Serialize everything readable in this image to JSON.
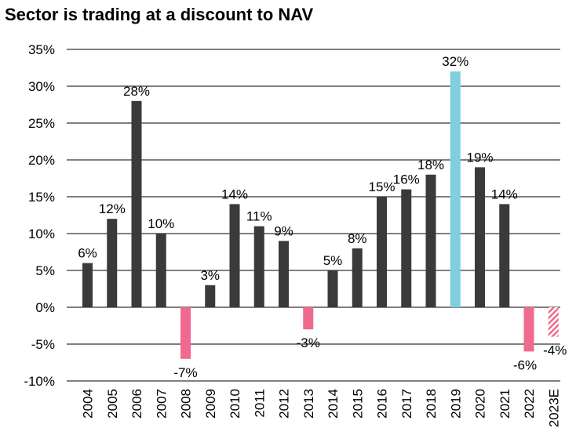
{
  "chart_data": {
    "type": "bar",
    "title": "Sector is trading at a discount to NAV",
    "xlabel": "",
    "ylabel": "",
    "ylim": [
      -10,
      35
    ],
    "yticks": [
      35,
      30,
      25,
      20,
      15,
      10,
      5,
      0,
      -5,
      -10
    ],
    "ytick_labels": [
      "35%",
      "30%",
      "25%",
      "20%",
      "15%",
      "10%",
      "5%",
      "0%",
      "-5%",
      "-10%"
    ],
    "grid": true,
    "legend": "none",
    "categories": [
      "2004",
      "2005",
      "2006",
      "2007",
      "2008",
      "2009",
      "2010",
      "2011",
      "2012",
      "2013",
      "2014",
      "2015",
      "2016",
      "2017",
      "2018",
      "2019",
      "2020",
      "2021",
      "2022",
      "2023E"
    ],
    "values": [
      6,
      12,
      28,
      10,
      -7,
      3,
      14,
      11,
      9,
      -3,
      5,
      8,
      15,
      16,
      18,
      32,
      19,
      14,
      -6,
      -4
    ],
    "data_labels": [
      "6%",
      "12%",
      "28%",
      "10%",
      "-7%",
      "3%",
      "14%",
      "11%",
      "9%",
      "-3%",
      "5%",
      "8%",
      "15%",
      "16%",
      "18%",
      "32%",
      "19%",
      "14%",
      "-6%",
      "-4%"
    ],
    "bar_styles": [
      "dark",
      "dark",
      "dark",
      "dark",
      "pink",
      "dark",
      "dark",
      "dark",
      "dark",
      "pink",
      "dark",
      "dark",
      "dark",
      "dark",
      "dark",
      "highlight",
      "dark",
      "dark",
      "pink",
      "pink-hatched"
    ],
    "colors": {
      "dark": "#3a3a3a",
      "pink": "#f0698f",
      "highlight": "#7ecfe0",
      "grid": "#000000"
    }
  }
}
